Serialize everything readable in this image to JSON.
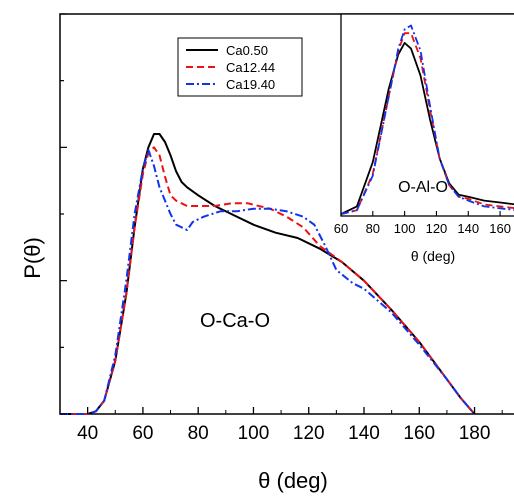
{
  "chart_data": [
    {
      "type": "line",
      "title": "",
      "annotation": "O-Ca-O",
      "xlabel": "θ (deg)",
      "ylabel": "P(θ)",
      "xlim": [
        30,
        195
      ],
      "ylim": [
        0,
        1.5
      ],
      "x_ticks": [
        40,
        60,
        80,
        100,
        120,
        140,
        160,
        180
      ],
      "y_ticks_labeled": false,
      "grid": false,
      "legend": {
        "placement": "top-center",
        "entries": [
          "Ca0.50",
          "Ca12.44",
          "Ca19.40"
        ]
      },
      "series": [
        {
          "name": "Ca0.50",
          "color": "#000000",
          "dash": "solid",
          "points": [
            [
              30,
              0
            ],
            [
              40,
              0
            ],
            [
              43,
              0.01
            ],
            [
              46,
              0.05
            ],
            [
              50,
              0.2
            ],
            [
              54,
              0.45
            ],
            [
              57,
              0.7
            ],
            [
              60,
              0.92
            ],
            [
              62,
              1.0
            ],
            [
              64,
              1.05
            ],
            [
              66,
              1.05
            ],
            [
              68,
              1.02
            ],
            [
              70,
              0.97
            ],
            [
              72,
              0.91
            ],
            [
              74,
              0.87
            ],
            [
              76,
              0.85
            ],
            [
              80,
              0.82
            ],
            [
              86,
              0.78
            ],
            [
              92,
              0.75
            ],
            [
              100,
              0.71
            ],
            [
              108,
              0.68
            ],
            [
              116,
              0.66
            ],
            [
              124,
              0.62
            ],
            [
              132,
              0.57
            ],
            [
              140,
              0.5
            ],
            [
              150,
              0.39
            ],
            [
              160,
              0.27
            ],
            [
              170,
              0.13
            ],
            [
              175,
              0.06
            ],
            [
              180,
              0
            ]
          ]
        },
        {
          "name": "Ca12.44",
          "color": "#ee1111",
          "dash": "dashed",
          "points": [
            [
              30,
              0
            ],
            [
              40,
              0
            ],
            [
              43,
              0.01
            ],
            [
              46,
              0.05
            ],
            [
              50,
              0.2
            ],
            [
              54,
              0.45
            ],
            [
              57,
              0.7
            ],
            [
              60,
              0.9
            ],
            [
              62,
              0.98
            ],
            [
              64,
              1.0
            ],
            [
              66,
              0.97
            ],
            [
              68,
              0.89
            ],
            [
              70,
              0.82
            ],
            [
              72,
              0.8
            ],
            [
              76,
              0.78
            ],
            [
              80,
              0.78
            ],
            [
              86,
              0.78
            ],
            [
              92,
              0.79
            ],
            [
              98,
              0.79
            ],
            [
              106,
              0.77
            ],
            [
              112,
              0.74
            ],
            [
              118,
              0.7
            ],
            [
              124,
              0.63
            ],
            [
              132,
              0.57
            ],
            [
              140,
              0.5
            ],
            [
              150,
              0.39
            ],
            [
              160,
              0.27
            ],
            [
              170,
              0.13
            ],
            [
              175,
              0.06
            ],
            [
              180,
              0
            ]
          ]
        },
        {
          "name": "Ca19.40",
          "color": "#1133ee",
          "dash": "dash-dot",
          "points": [
            [
              30,
              0
            ],
            [
              40,
              0
            ],
            [
              43,
              0.01
            ],
            [
              46,
              0.05
            ],
            [
              50,
              0.22
            ],
            [
              54,
              0.5
            ],
            [
              57,
              0.75
            ],
            [
              60,
              0.92
            ],
            [
              62,
              0.99
            ],
            [
              64,
              0.93
            ],
            [
              66,
              0.85
            ],
            [
              70,
              0.75
            ],
            [
              72,
              0.71
            ],
            [
              74,
              0.7
            ],
            [
              76,
              0.69
            ],
            [
              78,
              0.72
            ],
            [
              82,
              0.74
            ],
            [
              88,
              0.76
            ],
            [
              94,
              0.76
            ],
            [
              100,
              0.77
            ],
            [
              106,
              0.77
            ],
            [
              112,
              0.76
            ],
            [
              118,
              0.74
            ],
            [
              122,
              0.71
            ],
            [
              126,
              0.63
            ],
            [
              130,
              0.54
            ],
            [
              136,
              0.49
            ],
            [
              140,
              0.47
            ],
            [
              150,
              0.38
            ],
            [
              160,
              0.26
            ],
            [
              170,
              0.13
            ],
            [
              175,
              0.06
            ],
            [
              180,
              0
            ]
          ]
        }
      ]
    },
    {
      "type": "line",
      "title": "",
      "annotation": "O-Al-O",
      "xlabel": "θ (deg)",
      "ylabel": "",
      "xlim": [
        60,
        170
      ],
      "ylim": [
        0,
        1.05
      ],
      "x_ticks": [
        60,
        80,
        100,
        120,
        140,
        160
      ],
      "y_ticks_labeled": false,
      "grid": false,
      "series": [
        {
          "name": "Ca0.50",
          "color": "#000000",
          "dash": "solid",
          "points": [
            [
              60,
              0.01
            ],
            [
              70,
              0.05
            ],
            [
              80,
              0.28
            ],
            [
              90,
              0.66
            ],
            [
              96,
              0.84
            ],
            [
              100,
              0.9
            ],
            [
              104,
              0.87
            ],
            [
              110,
              0.73
            ],
            [
              116,
              0.5
            ],
            [
              122,
              0.3
            ],
            [
              128,
              0.17
            ],
            [
              134,
              0.11
            ],
            [
              140,
              0.1
            ],
            [
              150,
              0.08
            ],
            [
              160,
              0.07
            ],
            [
              170,
              0.06
            ]
          ]
        },
        {
          "name": "Ca12.44",
          "color": "#ee1111",
          "dash": "dashed",
          "points": [
            [
              60,
              0.01
            ],
            [
              70,
              0.03
            ],
            [
              80,
              0.22
            ],
            [
              90,
              0.62
            ],
            [
              96,
              0.86
            ],
            [
              100,
              0.95
            ],
            [
              104,
              0.95
            ],
            [
              110,
              0.82
            ],
            [
              116,
              0.55
            ],
            [
              122,
              0.3
            ],
            [
              128,
              0.16
            ],
            [
              134,
              0.1
            ],
            [
              140,
              0.09
            ],
            [
              150,
              0.06
            ],
            [
              160,
              0.05
            ],
            [
              170,
              0.04
            ]
          ]
        },
        {
          "name": "Ca19.40",
          "color": "#1133ee",
          "dash": "dash-dot",
          "points": [
            [
              60,
              0.01
            ],
            [
              70,
              0.03
            ],
            [
              80,
              0.21
            ],
            [
              90,
              0.62
            ],
            [
              96,
              0.87
            ],
            [
              100,
              0.97
            ],
            [
              104,
              0.99
            ],
            [
              110,
              0.86
            ],
            [
              116,
              0.57
            ],
            [
              122,
              0.3
            ],
            [
              128,
              0.16
            ],
            [
              134,
              0.1
            ],
            [
              140,
              0.08
            ],
            [
              150,
              0.05
            ],
            [
              160,
              0.04
            ],
            [
              170,
              0.03
            ]
          ]
        }
      ]
    }
  ]
}
